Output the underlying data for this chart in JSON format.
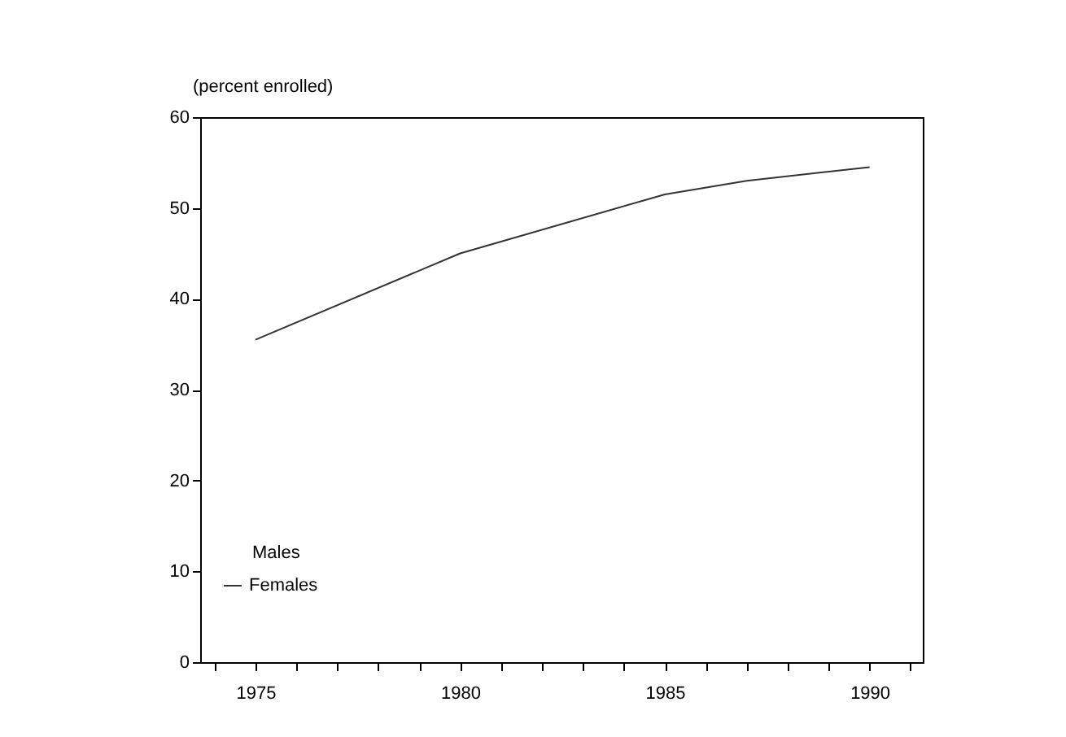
{
  "chart_data": {
    "type": "line",
    "ylabel": "(percent enrolled)",
    "x": [
      1975,
      1980,
      1985,
      1987,
      1990
    ],
    "series": [
      {
        "name": "Females",
        "color": "#333333",
        "values": [
          35.5,
          45,
          51.5,
          53,
          54.5
        ]
      }
    ],
    "xlim": [
      1973.65,
      1991.3
    ],
    "xticks": [
      {
        "value": 1974,
        "label": null
      },
      1975,
      {
        "value": 1976,
        "label": null
      },
      {
        "value": 1977,
        "label": null
      },
      {
        "value": 1978,
        "label": null
      },
      {
        "value": 1979,
        "label": null
      },
      1980,
      {
        "value": 1981,
        "label": null
      },
      {
        "value": 1982,
        "label": null
      },
      {
        "value": 1983,
        "label": null
      },
      {
        "value": 1984,
        "label": null
      },
      1985,
      {
        "value": 1986,
        "label": null
      },
      {
        "value": 1987,
        "label": null
      },
      {
        "value": 1988,
        "label": null
      },
      {
        "value": 1989,
        "label": null
      },
      1990,
      {
        "value": 1991,
        "label": null
      }
    ],
    "ylim": [
      0,
      60
    ],
    "yticks": [
      0,
      10,
      20,
      30,
      40,
      50,
      60
    ],
    "annotations": [
      "Males"
    ],
    "legend": "bottom left",
    "grid": false,
    "line_style": "solid",
    "marker": "none"
  }
}
